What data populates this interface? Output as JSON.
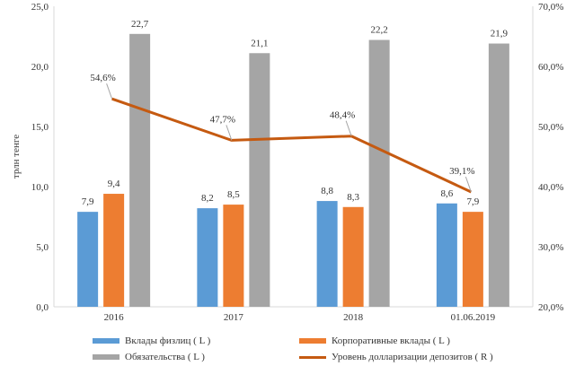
{
  "chart_data": {
    "type": "bar",
    "categories": [
      "2016",
      "2017",
      "2018",
      "01.06.2019"
    ],
    "series": [
      {
        "name": "Вклады физлиц ( L )",
        "axis": "left",
        "kind": "bar",
        "color": "#5B9BD5",
        "values": [
          7.9,
          8.2,
          8.8,
          8.6
        ],
        "labels": [
          "7,9",
          "8,2",
          "8,8",
          "8,6"
        ]
      },
      {
        "name": "Корпоративные вклады ( L )",
        "axis": "left",
        "kind": "bar",
        "color": "#ED7D31",
        "values": [
          9.4,
          8.5,
          8.3,
          7.9
        ],
        "labels": [
          "9,4",
          "8,5",
          "8,3",
          "7,9"
        ]
      },
      {
        "name": "Обязательства ( L )",
        "axis": "left",
        "kind": "bar",
        "color": "#A5A5A5",
        "values": [
          22.7,
          21.1,
          22.2,
          21.9
        ],
        "labels": [
          "22,7",
          "21,1",
          "22,2",
          "21,9"
        ]
      },
      {
        "name": "Уровень долларизации депозитов ( R )",
        "axis": "right",
        "kind": "line",
        "color": "#C55A11",
        "values": [
          54.6,
          47.7,
          48.4,
          39.1
        ],
        "labels": [
          "54,6%",
          "47,7%",
          "48,4%",
          "39,1%"
        ]
      }
    ],
    "ylabel": "трлн тенге",
    "ylim": [
      0,
      25
    ],
    "y_ticks": [
      "0,0",
      "5,0",
      "10,0",
      "15,0",
      "20,0",
      "25,0"
    ],
    "y2lim": [
      20,
      70
    ],
    "y2_ticks": [
      "20,0%",
      "30,0%",
      "40,0%",
      "50,0%",
      "60,0%",
      "70,0%"
    ],
    "grid": false,
    "legend_position": "bottom"
  }
}
